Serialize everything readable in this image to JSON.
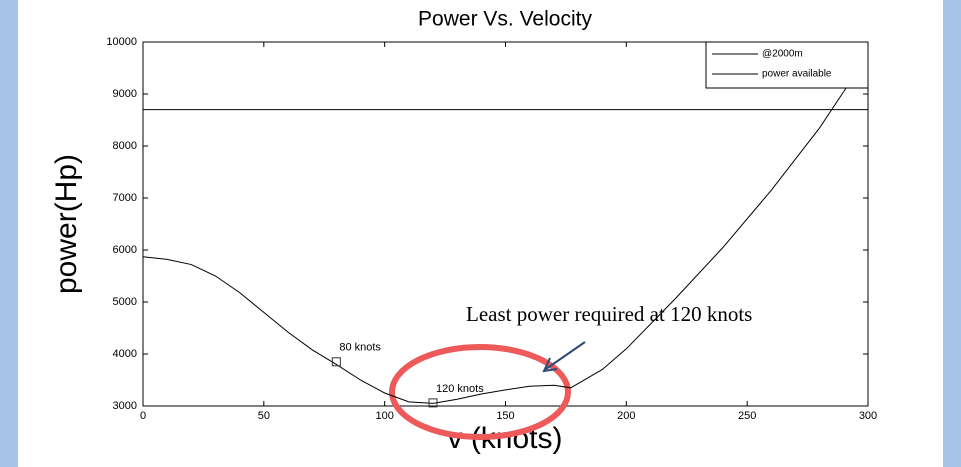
{
  "chart_data": {
    "type": "line",
    "title": "Power Vs. Velocity",
    "xlabel": "v (knots)",
    "ylabel": "power(Hp)",
    "xlim": [
      0,
      300
    ],
    "xticks": [
      0,
      50,
      100,
      150,
      200,
      250,
      300
    ],
    "ylim": [
      3000,
      10000
    ],
    "yticks": [
      3000,
      4000,
      5000,
      6000,
      7000,
      8000,
      9000,
      10000
    ],
    "legend": "upper right",
    "series": [
      {
        "name": "@2000m",
        "color": "#000000",
        "x": [
          0,
          10,
          20,
          30,
          40,
          50,
          60,
          70,
          80,
          90,
          100,
          110,
          120,
          130,
          140,
          150,
          160,
          170,
          177,
          190,
          200,
          220,
          240,
          260,
          280,
          290,
          295
        ],
        "values": [
          5870,
          5820,
          5720,
          5500,
          5180,
          4800,
          4420,
          4080,
          3800,
          3500,
          3250,
          3080,
          3050,
          3130,
          3230,
          3310,
          3380,
          3400,
          3350,
          3700,
          4100,
          5050,
          6050,
          7150,
          8350,
          9050,
          9400
        ]
      },
      {
        "name": "power available",
        "color": "#000000",
        "x": [
          0,
          300
        ],
        "values": [
          8700,
          8700
        ]
      }
    ],
    "markers": [
      {
        "x": 80,
        "y": 3850,
        "label": "80 knots"
      },
      {
        "x": 120,
        "y": 3060,
        "label": "120 knots"
      }
    ],
    "annotation": "Least power required at 120 knots"
  }
}
